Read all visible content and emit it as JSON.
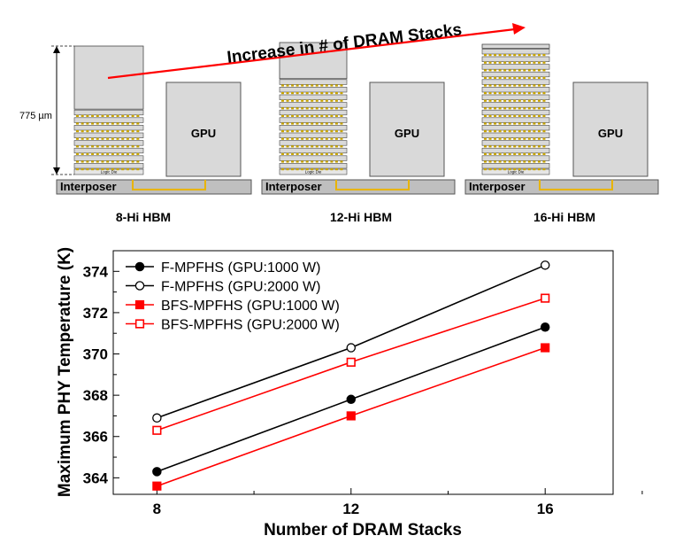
{
  "diagram": {
    "arrow_label": "Increase in # of DRAM Stacks",
    "height_label": "775 µm",
    "chip_label": "GPU",
    "interposer_label": "Interposer",
    "logic_die_label": "Logic Die",
    "packages": [
      {
        "caption": "8-Hi HBM",
        "stacks": 8
      },
      {
        "caption": "12-Hi HBM",
        "stacks": 12
      },
      {
        "caption": "16-Hi HBM",
        "stacks": 16
      }
    ]
  },
  "chart_data": {
    "type": "line",
    "title": "",
    "xlabel": "Number of DRAM Stacks",
    "ylabel": "Maximum PHY Temperature (K)",
    "x": [
      8,
      12,
      16
    ],
    "xlim": [
      7.1,
      17.4
    ],
    "ylim": [
      363.2,
      375.0
    ],
    "xticks": [
      "8",
      "12",
      "16"
    ],
    "yticks": [
      "364",
      "366",
      "368",
      "370",
      "372",
      "374"
    ],
    "grid": false,
    "legend_position": "top-left",
    "series": [
      {
        "name": "F-MPFHS (GPU:1000 W)",
        "values": [
          364.3,
          367.8,
          371.3
        ],
        "color": "#000000",
        "marker": "circle",
        "filled": true
      },
      {
        "name": "F-MPFHS (GPU:2000 W)",
        "values": [
          366.9,
          370.3,
          374.3
        ],
        "color": "#000000",
        "marker": "circle",
        "filled": false
      },
      {
        "name": "BFS-MPFHS (GPU:1000 W)",
        "values": [
          363.6,
          367.0,
          370.3
        ],
        "color": "#ff0000",
        "marker": "square",
        "filled": true
      },
      {
        "name": "BFS-MPFHS (GPU:2000 W)",
        "values": [
          366.3,
          369.6,
          372.7
        ],
        "color": "#ff0000",
        "marker": "square",
        "filled": false
      }
    ]
  }
}
